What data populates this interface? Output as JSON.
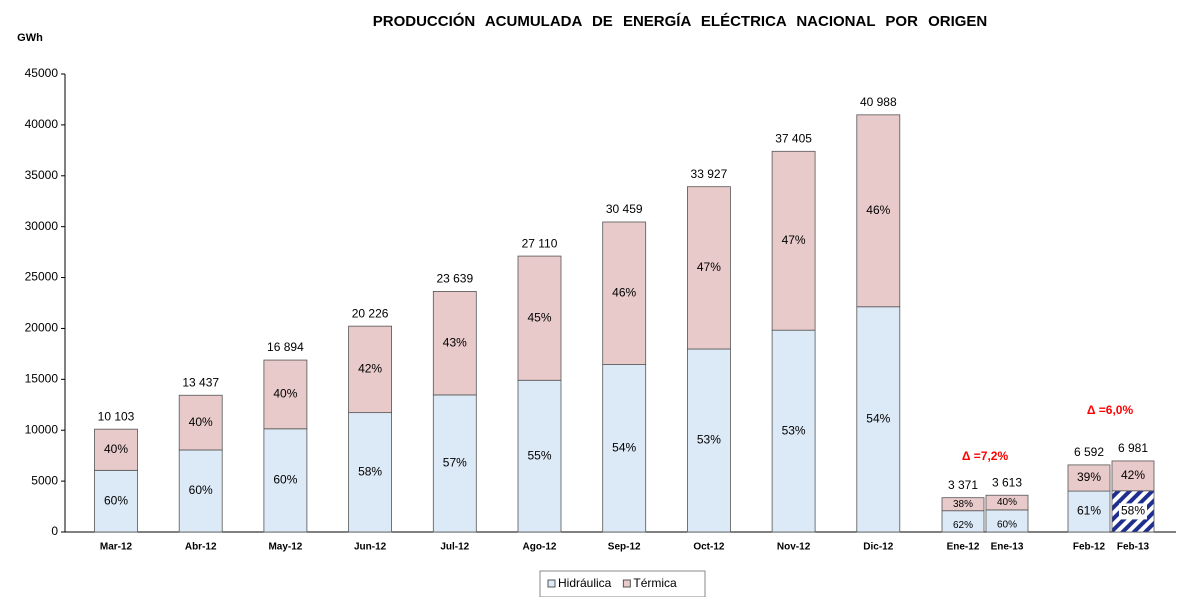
{
  "chart_data": {
    "type": "stacked_bar",
    "title": "PRODUCCIÓN ACUMULADA DE ENERGÍA ELÉCTRICA NACIONAL POR ORIGEN",
    "y_label": "GWh",
    "categories": [
      "Mar-12",
      "Abr-12",
      "May-12",
      "Jun-12",
      "Jul-12",
      "Ago-12",
      "Sep-12",
      "Oct-12",
      "Nov-12",
      "Dic-12",
      "Ene-12",
      "Ene-13",
      "Feb-12",
      "Feb-13"
    ],
    "series": [
      {
        "name": "Hidráulica",
        "color": "#dce9f6",
        "values": [
          6060,
          8060,
          10140,
          11730,
          13470,
          14910,
          16450,
          17980,
          19830,
          22130,
          2090,
          2170,
          4020,
          4050
        ],
        "share_labels": [
          "60%",
          "60%",
          "60%",
          "58%",
          "57%",
          "55%",
          "54%",
          "53%",
          "53%",
          "54%",
          "62%",
          "60%",
          "61%",
          "58%"
        ]
      },
      {
        "name": "Térmica",
        "color": "#e9caca",
        "values": [
          4043,
          5377,
          6754,
          8496,
          10169,
          12200,
          14009,
          15947,
          17575,
          18858,
          1281,
          1443,
          2572,
          2931
        ],
        "share_labels": [
          "40%",
          "40%",
          "40%",
          "42%",
          "43%",
          "45%",
          "46%",
          "47%",
          "47%",
          "46%",
          "38%",
          "40%",
          "39%",
          "42%"
        ]
      }
    ],
    "totals": [
      10103,
      13437,
      16894,
      20226,
      23639,
      27110,
      30459,
      33927,
      37405,
      40988,
      3371,
      3613,
      6592,
      6981
    ],
    "total_labels": [
      "10 103",
      "13 437",
      "16 894",
      "20 226",
      "23 639",
      "27 110",
      "30 459",
      "33 927",
      "37 405",
      "40 988",
      "3 371",
      "3 613",
      "6 592",
      "6 981"
    ],
    "hatched_category": "Feb-13",
    "annotations": [
      {
        "text": "Δ =7,2%",
        "color": "#ff0000"
      },
      {
        "text": "Δ =6,0%",
        "color": "#ff0000"
      }
    ],
    "ylim": [
      0,
      45000
    ],
    "yticks": [
      0,
      5000,
      10000,
      15000,
      20000,
      25000,
      30000,
      35000,
      40000,
      45000
    ],
    "legend": "bottom"
  }
}
